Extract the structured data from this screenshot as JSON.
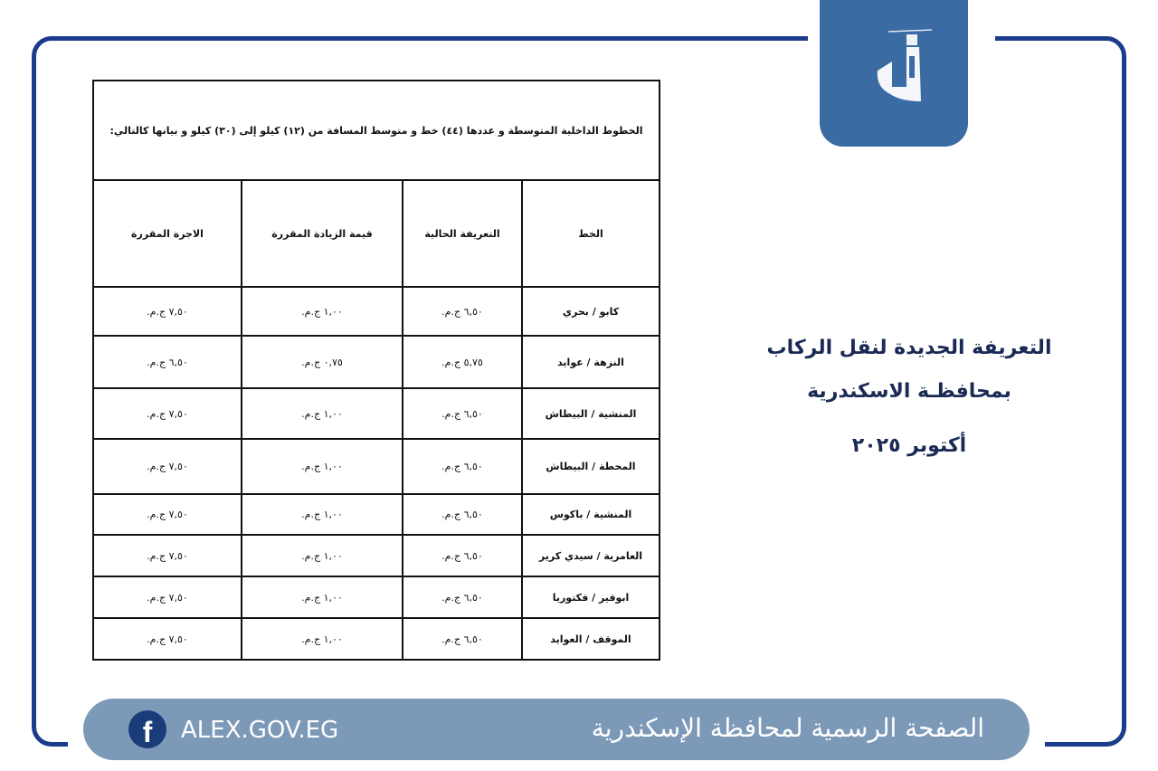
{
  "logo": {
    "icon": "lighthouse-logo",
    "colors": {
      "background": "#3a6ba3"
    }
  },
  "document": {
    "intro": "الخطوط الداخلية المتوسطة و عددها (٤٤) خط و متوسط المسافة من (١٢) كيلو إلى (٣٠) كيلو و بيانها كالتالي:",
    "headers": [
      "الخط",
      "التعريفة الحالية",
      "قيمة الزيادة المقررة",
      "الاجرة المقررة"
    ],
    "rows": [
      [
        "كابو / بحري",
        "٦,٥٠ ج.م.",
        "١,٠٠ ج.م.",
        "٧,٥٠ ج.م."
      ],
      [
        "النزهة / عوايد",
        "٥,٧٥ ج.م.",
        "٠,٧٥ ج.م.",
        "٦,٥٠ ج.م."
      ],
      [
        "المنشية / البيطاش",
        "٦,٥٠ ج.م.",
        "١,٠٠ ج.م.",
        "٧,٥٠ ج.م."
      ],
      [
        "المحطة / البيطاش",
        "٦,٥٠ ج.م.",
        "١,٠٠ ج.م.",
        "٧,٥٠ ج.م."
      ],
      [
        "المنشية / باكوس",
        "٦,٥٠ ج.م.",
        "١,٠٠ ج.م.",
        "٧,٥٠ ج.م."
      ],
      [
        "العامرية / سيدي كرير",
        "٦,٥٠ ج.م.",
        "١,٠٠ ج.م.",
        "٧,٥٠ ج.م."
      ],
      [
        "ابوقير / فكتوريا",
        "٦,٥٠ ج.م.",
        "١,٠٠ ج.م.",
        "٧,٥٠ ج.م."
      ],
      [
        "الموقف / العوايد",
        "٦,٥٠ ج.م.",
        "١,٠٠ ج.م.",
        "٧,٥٠ ج.م."
      ]
    ]
  },
  "headline": {
    "line1": "التعريفة الجديدة لنقل الركاب",
    "line2": "بمحافظـة الاسكندرية",
    "date": "أكتوبر ٢٠٢٥"
  },
  "footer": {
    "url": "ALEX.GOV.EG",
    "official": "الصفحة الرسمية لمحافظة الإسكندرية",
    "icon": "facebook-icon"
  }
}
